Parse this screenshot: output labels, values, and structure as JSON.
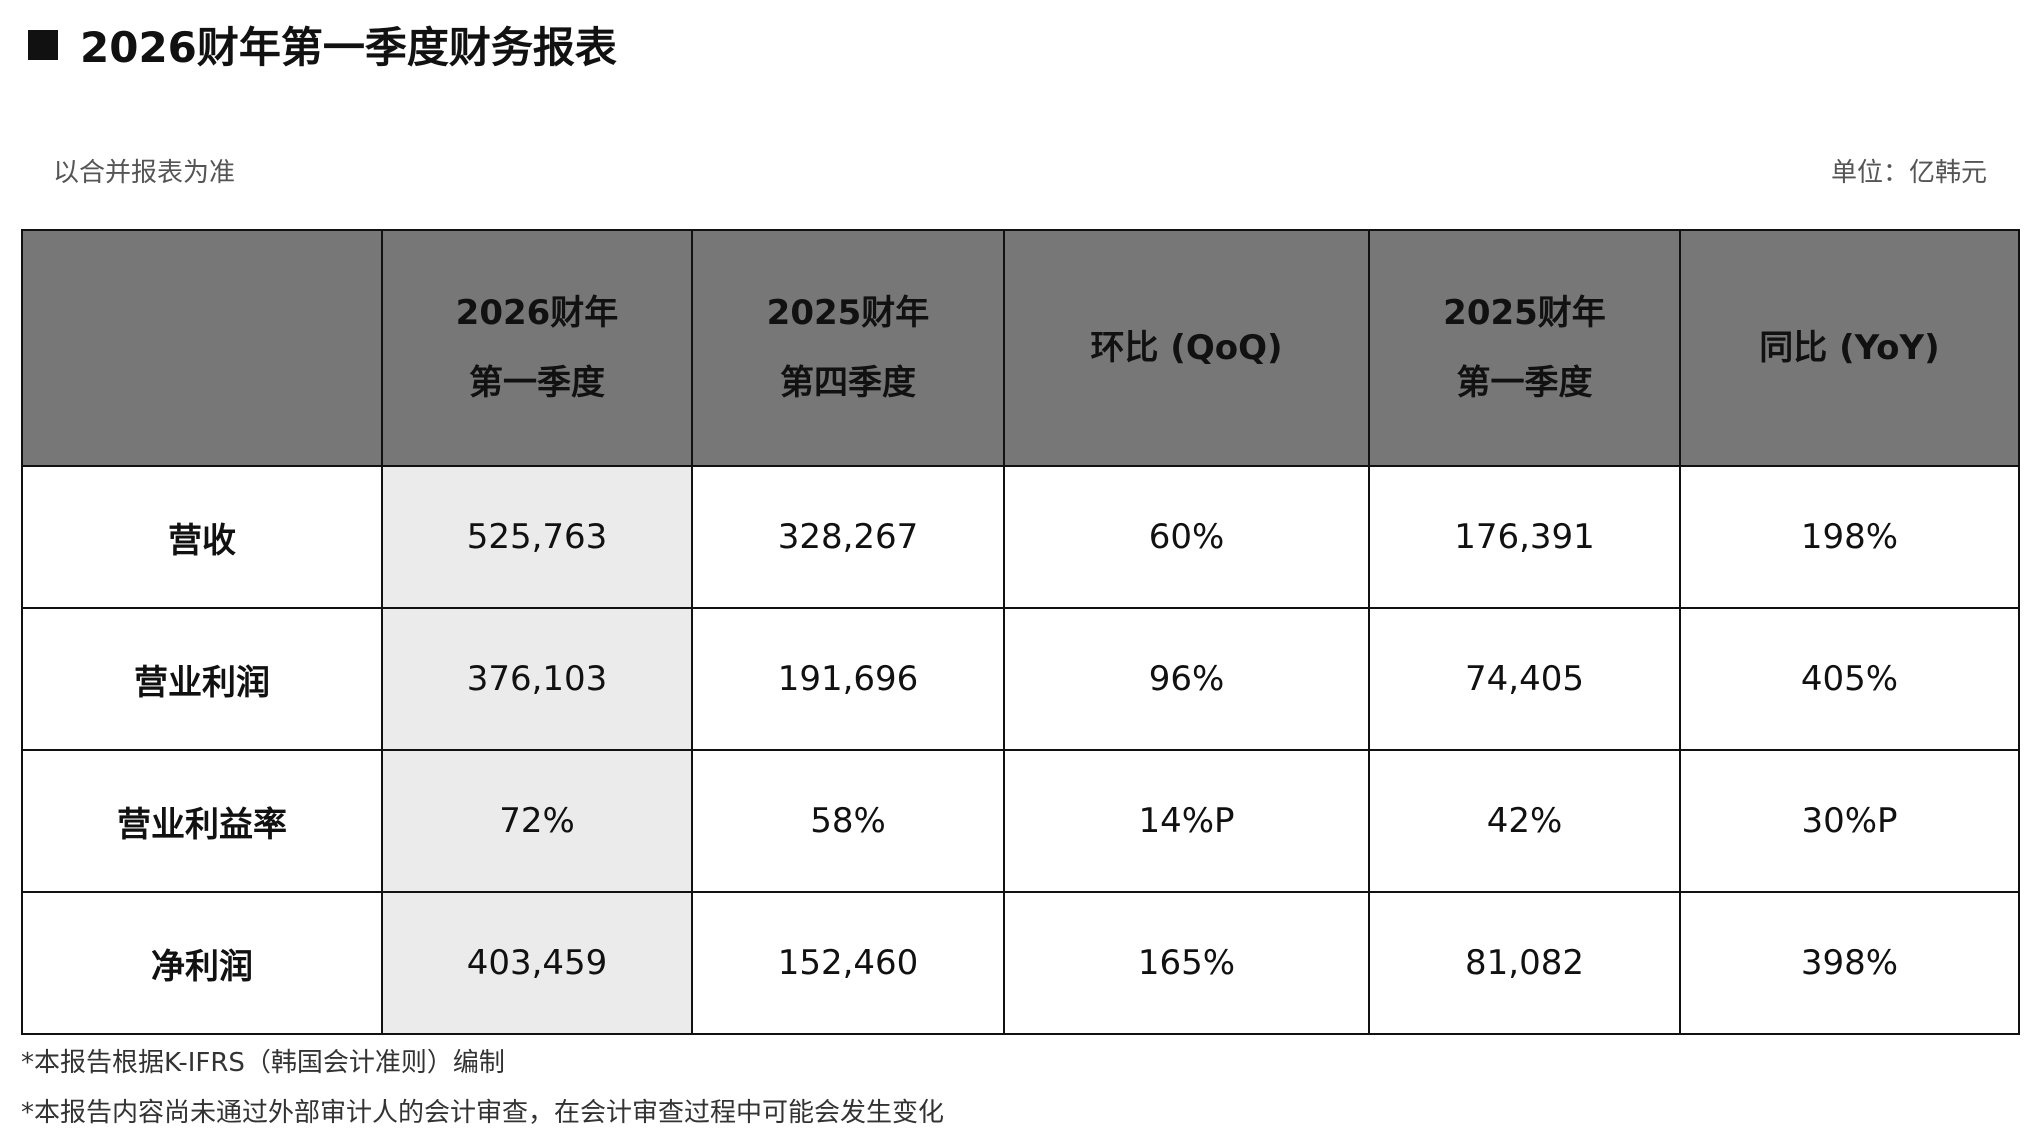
{
  "header": {
    "title": "2026财年第一季度财务报表",
    "subtitle": "以合并报表为准",
    "unit": "单位：亿韩元"
  },
  "table": {
    "columns": [
      [],
      [
        "2026财年",
        "第一季度"
      ],
      [
        "2025财年",
        "第四季度"
      ],
      [
        "环比 (QoQ)"
      ],
      [
        "2025财年",
        "第一季度"
      ],
      [
        "同比 (YoY)"
      ]
    ],
    "rows": [
      [
        "营收",
        "525,763",
        "328,267",
        "60%",
        "176,391",
        "198%"
      ],
      [
        "营业利润",
        "376,103",
        "191,696",
        "96%",
        "74,405",
        "405%"
      ],
      [
        "营业利益率",
        "72%",
        "58%",
        "14%P",
        "42%",
        "30%P"
      ],
      [
        "净利润",
        "403,459",
        "152,460",
        "165%",
        "81,082",
        "398%"
      ]
    ]
  },
  "footnotes": [
    "*本报告根据K-IFRS（韩国会计准则）编制",
    "*本报告内容尚未通过外部审计人的会计审查，在会计审查过程中可能会发生变化"
  ]
}
